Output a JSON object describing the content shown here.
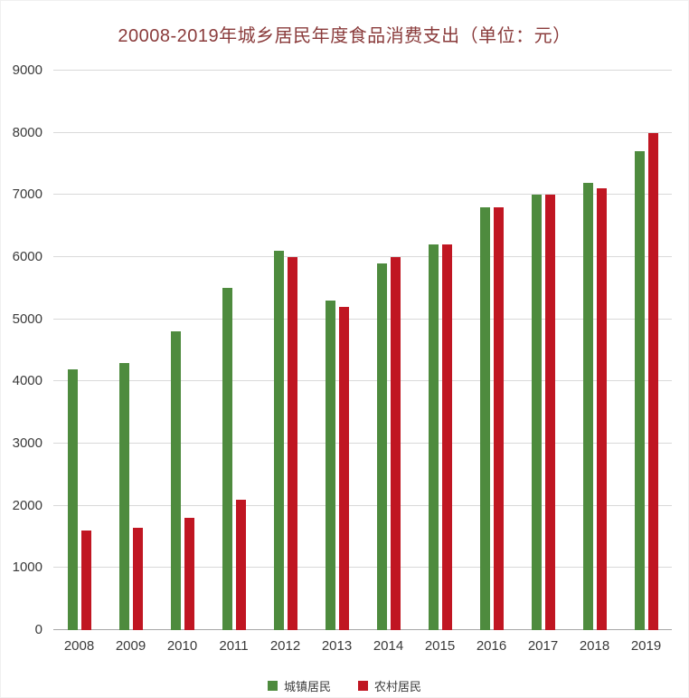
{
  "title": "20008-2019年城乡居民年度食品消费支出（单位：元）",
  "chart_data": {
    "type": "bar",
    "title": "20008-2019年城乡居民年度食品消费支出（单位：元）",
    "categories": [
      "2008",
      "2009",
      "2010",
      "2011",
      "2012",
      "2013",
      "2014",
      "2015",
      "2016",
      "2017",
      "2018",
      "2019"
    ],
    "series": [
      {
        "name": "城镇居民",
        "color": "#4e8b3e",
        "values": [
          4200,
          4300,
          4800,
          5500,
          6100,
          5300,
          5900,
          6200,
          6800,
          7000,
          7200,
          7700
        ]
      },
      {
        "name": "农村居民",
        "color": "#c01622",
        "values": [
          1600,
          1650,
          1800,
          2100,
          6000,
          5200,
          6000,
          6200,
          6800,
          7000,
          7100,
          8000
        ]
      }
    ],
    "xlabel": "",
    "ylabel": "",
    "ylim": [
      0,
      9000
    ],
    "ytick_interval": 1000,
    "grid": true,
    "legend_position": "bottom",
    "colors": {
      "title_text": "#8a3b3b",
      "gridline": "#d9d9d9",
      "axis_line": "#a6a6a6",
      "tick_text": "#3a3a3a",
      "background": "#ffffff"
    }
  }
}
